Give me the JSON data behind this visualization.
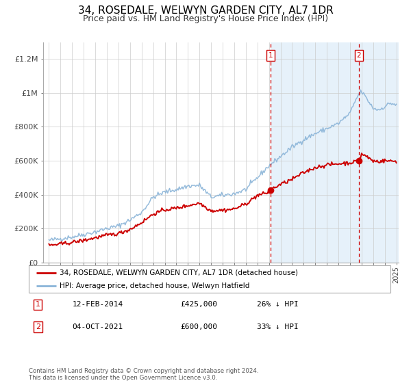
{
  "title": "34, ROSEDALE, WELWYN GARDEN CITY, AL7 1DR",
  "subtitle": "Price paid vs. HM Land Registry's House Price Index (HPI)",
  "title_fontsize": 11,
  "subtitle_fontsize": 9,
  "hpi_color": "#8ab4d8",
  "price_color": "#cc0000",
  "shaded_color": "#d6e8f7",
  "background_color": "#ffffff",
  "grid_color": "#cccccc",
  "ylim": [
    0,
    1300000
  ],
  "yticks": [
    0,
    200000,
    400000,
    600000,
    800000,
    1000000,
    1200000
  ],
  "ytick_labels": [
    "£0",
    "£200K",
    "£400K",
    "£600K",
    "£800K",
    "£1M",
    "£1.2M"
  ],
  "sale1_date_x": 2014.12,
  "sale1_price": 425000,
  "sale2_date_x": 2021.75,
  "sale2_price": 600000,
  "legend_label1": "34, ROSEDALE, WELWYN GARDEN CITY, AL7 1DR (detached house)",
  "legend_label2": "HPI: Average price, detached house, Welwyn Hatfield",
  "annotation1_label": "12-FEB-2014",
  "annotation1_price": "£425,000",
  "annotation1_hpi": "26% ↓ HPI",
  "annotation2_label": "04-OCT-2021",
  "annotation2_price": "£600,000",
  "annotation2_hpi": "33% ↓ HPI",
  "footer": "Contains HM Land Registry data © Crown copyright and database right 2024.\nThis data is licensed under the Open Government Licence v3.0.",
  "xmin": 1995,
  "xmax": 2025
}
